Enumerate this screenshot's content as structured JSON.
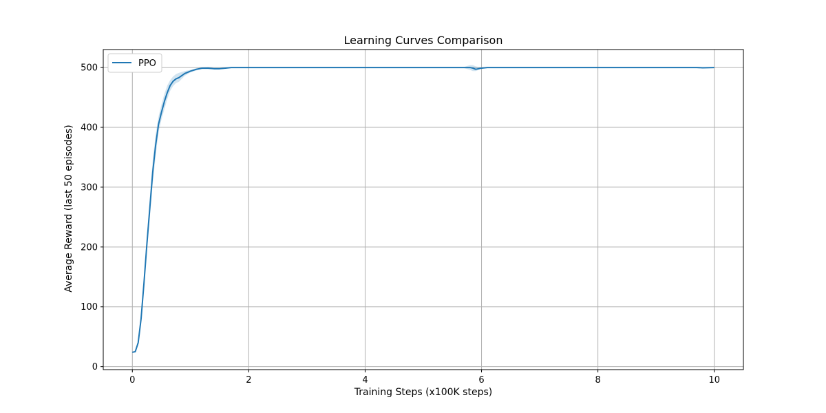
{
  "chart_data": {
    "type": "line",
    "title": "Learning Curves Comparison",
    "xlabel": "Training Steps (x100K steps)",
    "ylabel": "Average Reward (last 50 episodes)",
    "xlim": [
      -0.5,
      10.5
    ],
    "ylim": [
      -5,
      530
    ],
    "xticks": [
      0,
      2,
      4,
      6,
      8,
      10
    ],
    "yticks": [
      0,
      100,
      200,
      300,
      400,
      500
    ],
    "grid": true,
    "legend_position": "top-left",
    "series": [
      {
        "name": "PPO",
        "color": "#1f77b4",
        "band_color": "#1f77b4",
        "x": [
          0.0,
          0.05,
          0.1,
          0.15,
          0.2,
          0.25,
          0.3,
          0.35,
          0.4,
          0.45,
          0.5,
          0.55,
          0.6,
          0.65,
          0.7,
          0.75,
          0.8,
          0.9,
          1.0,
          1.1,
          1.2,
          1.3,
          1.4,
          1.5,
          1.6,
          1.7,
          1.8,
          2.0,
          3.0,
          4.0,
          5.0,
          5.6,
          5.7,
          5.8,
          5.85,
          5.9,
          6.0,
          6.1,
          6.2,
          7.0,
          8.0,
          9.0,
          9.7,
          9.8,
          10.0
        ],
        "y": [
          24,
          25,
          40,
          80,
          140,
          205,
          265,
          325,
          370,
          405,
          425,
          443,
          458,
          470,
          477,
          481,
          483,
          490,
          494,
          497,
          499,
          499,
          498,
          498,
          499,
          500,
          500,
          500,
          500,
          500,
          500,
          500,
          500,
          500,
          499,
          497,
          499,
          500,
          500,
          500,
          500,
          500,
          500,
          499.5,
          500
        ],
        "lower": [
          23,
          24,
          36,
          72,
          130,
          192,
          248,
          305,
          352,
          392,
          413,
          430,
          447,
          461,
          469,
          474,
          476,
          486,
          492,
          495,
          497,
          497,
          497,
          497,
          498,
          500,
          500,
          500,
          500,
          500,
          500,
          500,
          499,
          496,
          494,
          494,
          498,
          500,
          500,
          500,
          500,
          500,
          500,
          499,
          500
        ],
        "upper": [
          25,
          27,
          44,
          88,
          150,
          218,
          282,
          345,
          388,
          418,
          438,
          456,
          470,
          479,
          485,
          489,
          491,
          494,
          496,
          499,
          500,
          501,
          500,
          500,
          500,
          500,
          500,
          500,
          500,
          500,
          500,
          500,
          501,
          504,
          504,
          502,
          500,
          500,
          500,
          500,
          500,
          500,
          500,
          500,
          500
        ]
      }
    ]
  }
}
